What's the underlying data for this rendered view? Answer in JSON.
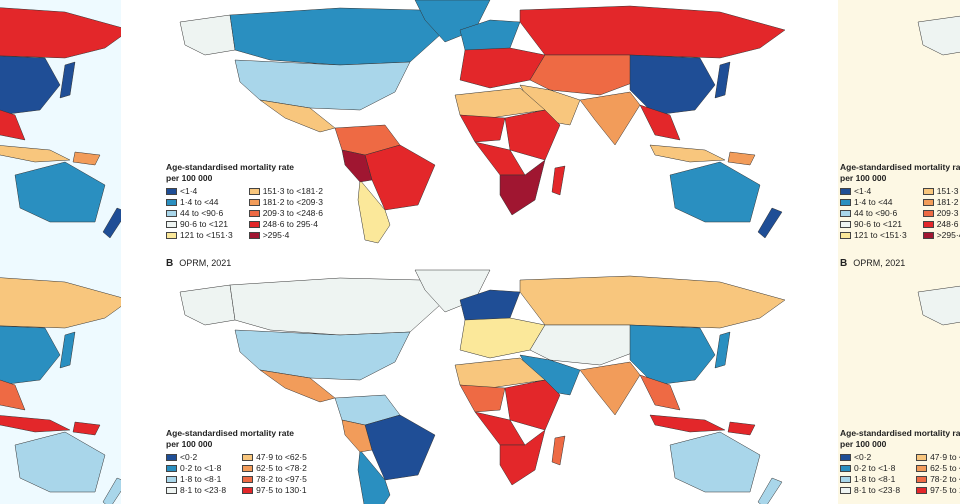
{
  "figure": {
    "panel_b_letter": "B",
    "panel_b_title": "OPRM, 2021",
    "map_a": {
      "legend_title": "Age-standardised mortality rate",
      "legend_subtitle": "per 100 000",
      "items": [
        {
          "label": "<1·4",
          "color": "#1f4e96"
        },
        {
          "label": "1·4 to <44",
          "color": "#2a8fc0"
        },
        {
          "label": "44 to <90·6",
          "color": "#a9d6ea"
        },
        {
          "label": "90·6 to <121",
          "color": "#eef4f2"
        },
        {
          "label": "121 to <151·3",
          "color": "#fbe89a"
        },
        {
          "label": "151·3 to <181·2",
          "color": "#f8c67d"
        },
        {
          "label": "181·2 to <209·3",
          "color": "#f29c5a"
        },
        {
          "label": "209·3 to <248·6",
          "color": "#ee6a44"
        },
        {
          "label": "248·6 to 295·4",
          "color": "#e3272a"
        },
        {
          "label": ">295·4",
          "color": "#a01631"
        }
      ]
    },
    "map_b": {
      "legend_title": "Age-standardised mortality rate",
      "legend_subtitle": "per 100 000",
      "items": [
        {
          "label": "<0·2",
          "color": "#1f4e96"
        },
        {
          "label": "0·2 to <1·8",
          "color": "#2a8fc0"
        },
        {
          "label": "1·8 to <8·1",
          "color": "#a9d6ea"
        },
        {
          "label": "8·1 to <23·8",
          "color": "#eef4f2"
        },
        {
          "label": "47·9 to <62·5",
          "color": "#f8c67d"
        },
        {
          "label": "62·5 to <78·2",
          "color": "#f29c5a"
        },
        {
          "label": "78·2 to <97·5",
          "color": "#ee6a44"
        },
        {
          "label": "97·5 to 130·1",
          "color": "#e3272a"
        }
      ]
    }
  }
}
